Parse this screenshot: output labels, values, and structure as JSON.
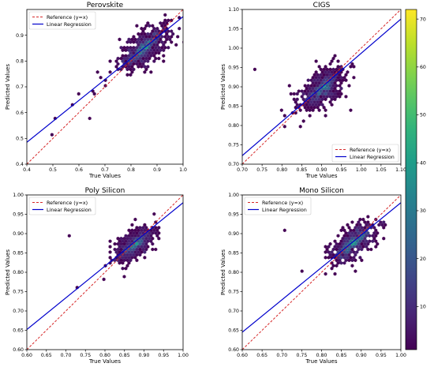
{
  "figure": {
    "colormap": "viridis",
    "colorbar": {
      "min": 1,
      "max": 72,
      "ticks": [
        10,
        20,
        30,
        40,
        50,
        60,
        70
      ]
    },
    "colors": {
      "reference": "#d62728",
      "regression": "#0000cc"
    }
  },
  "chart_data": [
    {
      "type": "scatter",
      "subtype": "hexbin",
      "title": "Perovskite",
      "xlabel": "True Values",
      "ylabel": "Predicted Values",
      "xlim": [
        0.4,
        1.0
      ],
      "ylim": [
        0.4,
        1.0
      ],
      "xticks": [
        0.4,
        0.5,
        0.6,
        0.7,
        0.8,
        0.9,
        1.0
      ],
      "yticks": [
        0.4,
        0.5,
        0.6,
        0.7,
        0.8,
        0.9
      ],
      "xtick_labels": [
        "0.4",
        "0.5",
        "0.6",
        "0.7",
        "0.8",
        "0.9",
        "1.0"
      ],
      "ytick_labels": [
        "0.4",
        "0.5",
        "0.6",
        "0.7",
        "0.8",
        "0.9"
      ],
      "cluster": {
        "cx": 0.85,
        "cy": 0.85,
        "spread_x": 0.05,
        "spread_y": 0.045,
        "n": 460,
        "corr": 0.65
      },
      "outliers": [
        [
          0.5,
          0.51
        ],
        [
          0.51,
          0.58
        ],
        [
          0.58,
          0.63
        ],
        [
          0.6,
          0.67
        ],
        [
          0.65,
          0.68
        ],
        [
          0.66,
          0.67
        ],
        [
          0.64,
          0.575
        ],
        [
          0.7,
          0.7
        ],
        [
          0.72,
          0.76
        ],
        [
          0.68,
          0.74
        ]
      ],
      "reference_line": [
        [
          0.4,
          0.4
        ],
        [
          1.0,
          1.0
        ]
      ],
      "regression_line": [
        [
          0.4,
          0.485
        ],
        [
          1.0,
          0.972
        ]
      ],
      "legend": {
        "position": "upper-left",
        "entries": [
          "Reference (y=x)",
          "Linear Regression"
        ]
      }
    },
    {
      "type": "scatter",
      "subtype": "hexbin",
      "title": "CIGS",
      "xlabel": "True Values",
      "ylabel": "Predicted Values",
      "xlim": [
        0.7,
        1.1
      ],
      "ylim": [
        0.7,
        1.1
      ],
      "xticks": [
        0.7,
        0.75,
        0.8,
        0.85,
        0.9,
        0.95,
        1.0,
        1.05,
        1.1
      ],
      "yticks": [
        0.7,
        0.75,
        0.8,
        0.85,
        0.9,
        0.95,
        1.0,
        1.05,
        1.1
      ],
      "xtick_labels": [
        "0.70",
        "0.75",
        "0.80",
        "0.85",
        "0.90",
        "0.95",
        "1.00",
        "1.05",
        "1.10"
      ],
      "ytick_labels": [
        "0.70",
        "0.75",
        "0.80",
        "0.85",
        "0.90",
        "0.95",
        "1.00",
        "1.05",
        "1.10"
      ],
      "cluster": {
        "cx": 0.9,
        "cy": 0.895,
        "spread_x": 0.03,
        "spread_y": 0.028,
        "n": 440,
        "corr": 0.5
      },
      "outliers": [
        [
          0.735,
          0.948
        ],
        [
          0.82,
          0.9
        ],
        [
          0.97,
          0.84
        ]
      ],
      "reference_line": [
        [
          0.7,
          0.7
        ],
        [
          1.1,
          1.1
        ]
      ],
      "regression_line": [
        [
          0.7,
          0.722
        ],
        [
          1.1,
          1.075
        ]
      ],
      "legend": {
        "position": "lower-right",
        "entries": [
          "Reference (y=x)",
          "Linear Regression"
        ]
      }
    },
    {
      "type": "scatter",
      "subtype": "hexbin",
      "title": "Poly Silicon",
      "xlabel": "True Values",
      "ylabel": "Predicted Values",
      "xlim": [
        0.6,
        1.0
      ],
      "ylim": [
        0.6,
        1.0
      ],
      "xticks": [
        0.6,
        0.65,
        0.7,
        0.75,
        0.8,
        0.85,
        0.9,
        0.95,
        1.0
      ],
      "yticks": [
        0.6,
        0.65,
        0.7,
        0.75,
        0.8,
        0.85,
        0.9,
        0.95,
        1.0
      ],
      "xtick_labels": [
        "0.60",
        "0.65",
        "0.70",
        "0.75",
        "0.80",
        "0.85",
        "0.90",
        "0.95",
        "1.00"
      ],
      "ytick_labels": [
        "0.60",
        "0.65",
        "0.70",
        "0.75",
        "0.80",
        "0.85",
        "0.90",
        "0.95",
        "1.00"
      ],
      "cluster": {
        "cx": 0.875,
        "cy": 0.87,
        "spread_x": 0.027,
        "spread_y": 0.025,
        "n": 430,
        "corr": 0.6
      },
      "outliers": [
        [
          0.705,
          0.895
        ],
        [
          0.73,
          0.76
        ],
        [
          0.8,
          0.78
        ]
      ],
      "reference_line": [
        [
          0.6,
          0.6
        ],
        [
          1.0,
          1.0
        ]
      ],
      "regression_line": [
        [
          0.6,
          0.652
        ],
        [
          1.0,
          0.98
        ]
      ],
      "legend": {
        "position": "upper-left",
        "entries": [
          "Reference (y=x)",
          "Linear Regression"
        ]
      }
    },
    {
      "type": "scatter",
      "subtype": "hexbin",
      "title": "Mono Silicon",
      "xlabel": "True Values",
      "ylabel": "Predicted Values",
      "xlim": [
        0.6,
        1.0
      ],
      "ylim": [
        0.6,
        1.0
      ],
      "xticks": [
        0.6,
        0.65,
        0.7,
        0.75,
        0.8,
        0.85,
        0.9,
        0.95,
        1.0
      ],
      "yticks": [
        0.6,
        0.65,
        0.7,
        0.75,
        0.8,
        0.85,
        0.9,
        0.95,
        1.0
      ],
      "xtick_labels": [
        "0.60",
        "0.65",
        "0.70",
        "0.75",
        "0.80",
        "0.85",
        "0.90",
        "0.95",
        "1.00"
      ],
      "ytick_labels": [
        "0.60",
        "0.65",
        "0.70",
        "0.75",
        "0.80",
        "0.85",
        "0.90",
        "0.95",
        "1.00"
      ],
      "cluster": {
        "cx": 0.88,
        "cy": 0.875,
        "spread_x": 0.03,
        "spread_y": 0.027,
        "n": 430,
        "corr": 0.6
      },
      "outliers": [
        [
          0.71,
          0.91
        ],
        [
          0.75,
          0.8
        ]
      ],
      "reference_line": [
        [
          0.6,
          0.6
        ],
        [
          1.0,
          1.0
        ]
      ],
      "regression_line": [
        [
          0.6,
          0.645
        ],
        [
          1.0,
          0.98
        ]
      ],
      "legend": {
        "position": "upper-left",
        "entries": [
          "Reference (y=x)",
          "Linear Regression"
        ]
      }
    }
  ]
}
